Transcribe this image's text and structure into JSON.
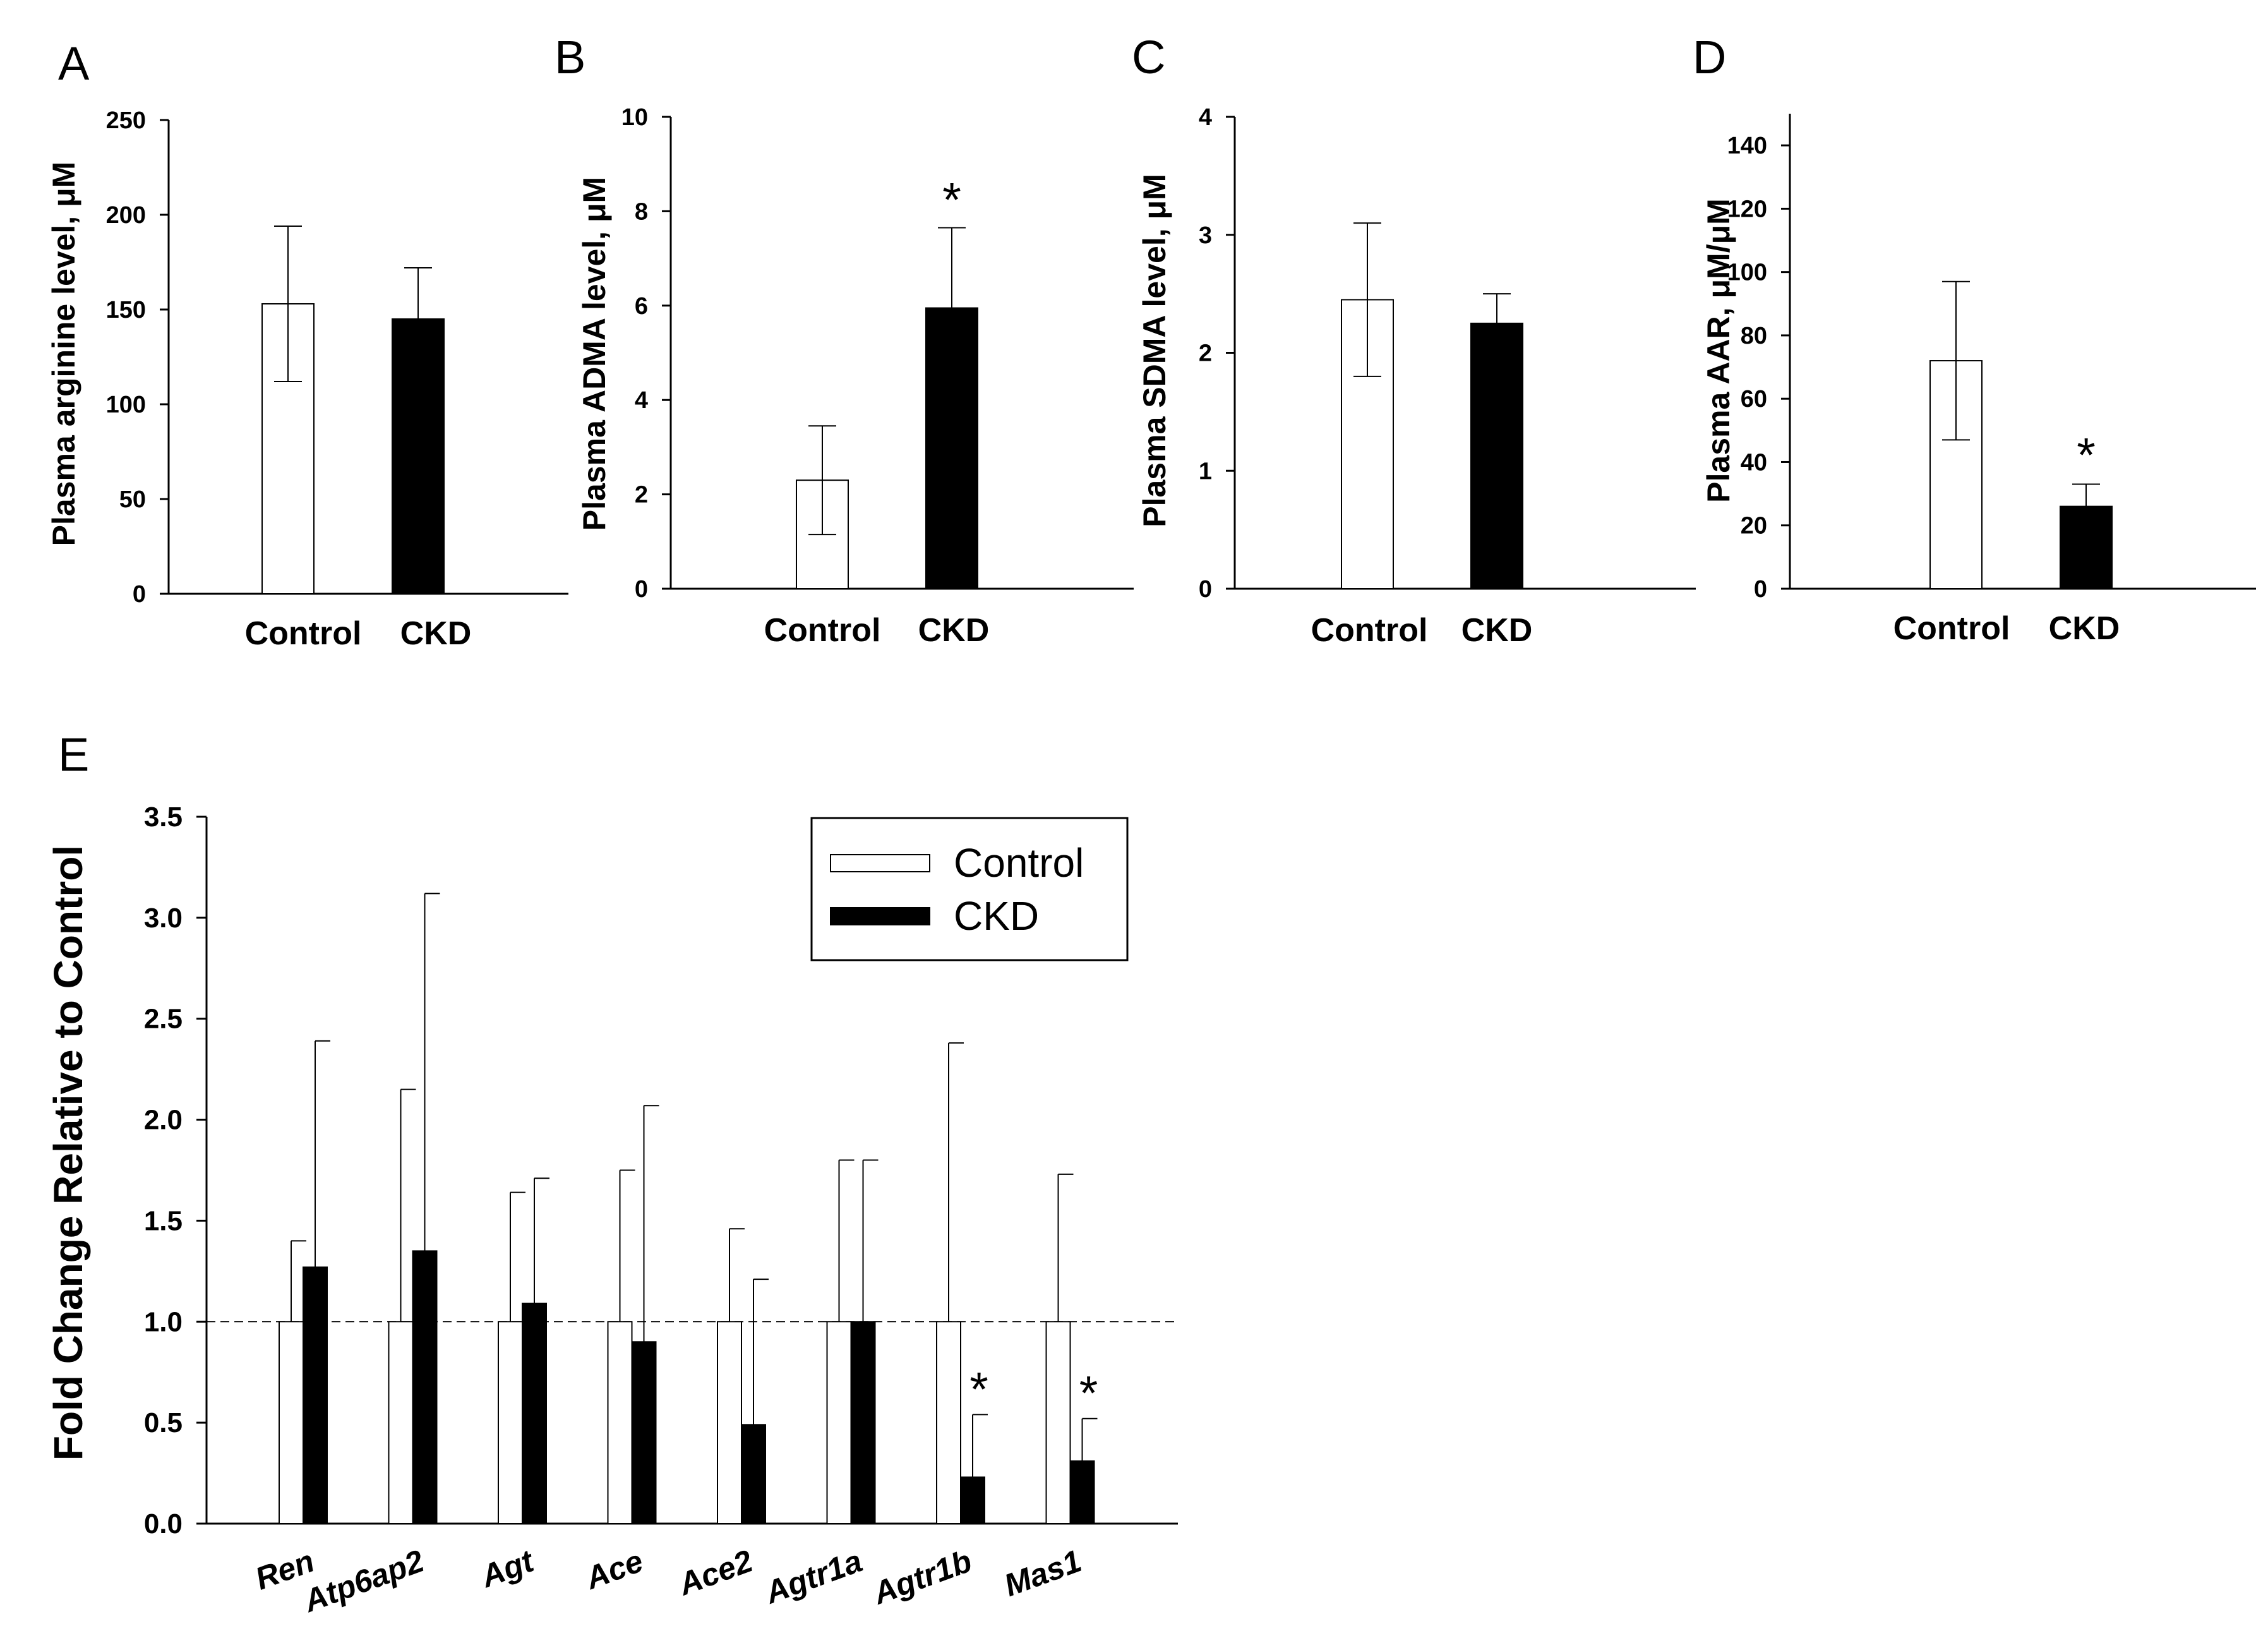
{
  "chart_data": [
    {
      "panel": "A",
      "type": "bar",
      "categories": [
        "Control",
        "CKD"
      ],
      "values": [
        153,
        145
      ],
      "errors": [
        41,
        27
      ],
      "colors": [
        "#ffffff",
        "#000000"
      ],
      "significant": [
        false,
        false
      ],
      "ylabel": "Plasma arginine level, μM",
      "ylim": [
        0,
        250
      ],
      "yticks": [
        0,
        50,
        100,
        150,
        200,
        250
      ],
      "yticklabels": [
        "0",
        "50",
        "100",
        "150",
        "200",
        "250"
      ]
    },
    {
      "panel": "B",
      "type": "bar",
      "categories": [
        "Control",
        "CKD"
      ],
      "values": [
        2.3,
        5.95
      ],
      "errors": [
        1.15,
        1.7
      ],
      "colors": [
        "#ffffff",
        "#000000"
      ],
      "significant": [
        false,
        true
      ],
      "ylabel": "Plasma ADMA level, μM",
      "ylim": [
        0,
        10
      ],
      "yticks": [
        0,
        2,
        4,
        6,
        8,
        10
      ],
      "yticklabels": [
        "0",
        "2",
        "4",
        "6",
        "8",
        "10"
      ]
    },
    {
      "panel": "C",
      "type": "bar",
      "categories": [
        "Control",
        "CKD"
      ],
      "values": [
        2.45,
        2.25
      ],
      "errors": [
        0.65,
        0.25
      ],
      "colors": [
        "#ffffff",
        "#000000"
      ],
      "significant": [
        false,
        false
      ],
      "ylabel": "Plasma SDMA level, μM",
      "ylim": [
        0,
        4
      ],
      "yticks": [
        0,
        1,
        2,
        3,
        4
      ],
      "yticklabels": [
        "0",
        "1",
        "2",
        "3",
        "4"
      ]
    },
    {
      "panel": "D",
      "type": "bar",
      "categories": [
        "Control",
        "CKD"
      ],
      "values": [
        72,
        26
      ],
      "errors": [
        25,
        7
      ],
      "colors": [
        "#ffffff",
        "#000000"
      ],
      "significant": [
        false,
        true
      ],
      "ylabel": "Plasma AAR, μM/μM",
      "ylim": [
        0,
        150
      ],
      "yticks": [
        0,
        20,
        40,
        60,
        80,
        100,
        120,
        140
      ],
      "yticklabels": [
        "0",
        "20",
        "40",
        "60",
        "80",
        "100",
        "120",
        "140"
      ]
    },
    {
      "panel": "E",
      "type": "bar",
      "categories": [
        "Ren",
        "Atp6ap2",
        "Agt",
        "Ace",
        "Ace2",
        "Agtr1a",
        "Agtr1b",
        "Mas1"
      ],
      "series": [
        {
          "name": "Control",
          "color": "#ffffff",
          "values": [
            1.0,
            1.0,
            1.0,
            1.0,
            1.0,
            1.0,
            1.0,
            1.0
          ],
          "errors": [
            0.4,
            1.15,
            0.64,
            0.75,
            0.46,
            0.8,
            1.38,
            0.73
          ]
        },
        {
          "name": "CKD",
          "color": "#000000",
          "values": [
            1.27,
            1.35,
            1.09,
            0.9,
            0.49,
            1.0,
            0.23,
            0.31
          ],
          "errors": [
            1.12,
            1.77,
            0.62,
            1.17,
            0.72,
            0.8,
            0.31,
            0.21
          ]
        }
      ],
      "significant_ckd": [
        false,
        false,
        false,
        false,
        false,
        false,
        true,
        true
      ],
      "reference_line": 1.0,
      "ylabel": "Fold Change Relative to Control",
      "ylim": [
        0,
        3.5
      ],
      "yticks": [
        0,
        0.5,
        1,
        1.5,
        2,
        2.5,
        3,
        3.5
      ],
      "yticklabels": [
        "0.0",
        "0.5",
        "1.0",
        "1.5",
        "2.0",
        "2.5",
        "3.0",
        "3.5"
      ],
      "legend": [
        "Control",
        "CKD"
      ],
      "legend_position": "top-right"
    }
  ],
  "significance_marker": "*"
}
